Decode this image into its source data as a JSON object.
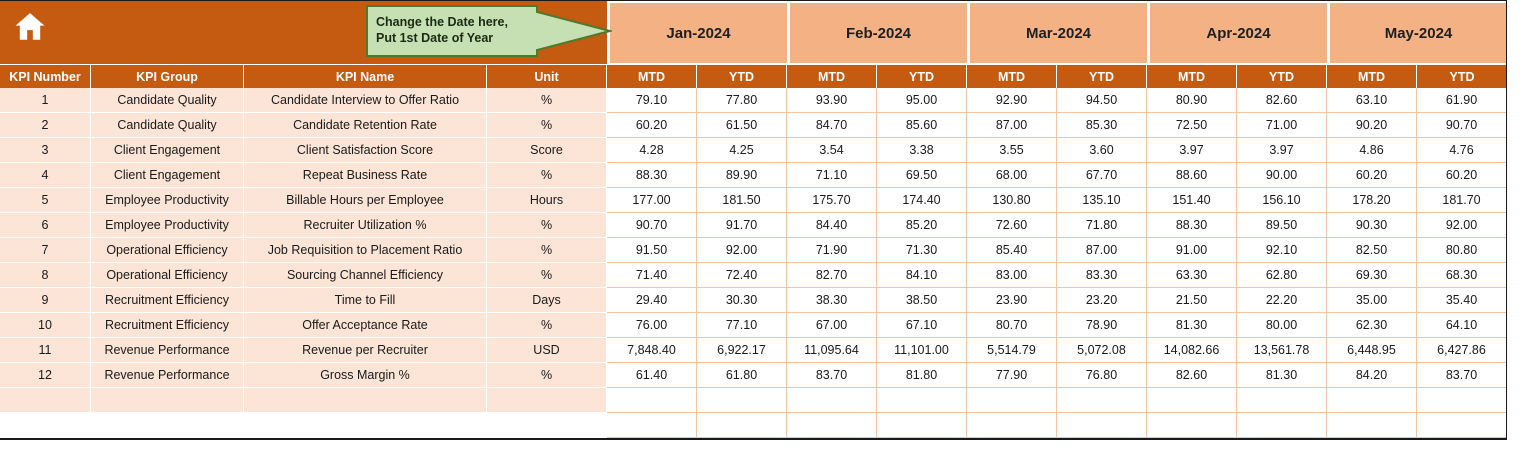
{
  "callout": {
    "line1": "Change the Date here,",
    "line2": "Put 1st Date of Year"
  },
  "months": [
    "Jan-2024",
    "Feb-2024",
    "Mar-2024",
    "Apr-2024",
    "May-2024"
  ],
  "subheader": {
    "mtd": "MTD",
    "ytd": "YTD"
  },
  "columns": [
    "KPI Number",
    "KPI Group",
    "KPI Name",
    "Unit"
  ],
  "rows": [
    {
      "num": "1",
      "group": "Candidate Quality",
      "name": "Candidate Interview to Offer Ratio",
      "unit": "%",
      "values": [
        "79.10",
        "77.80",
        "93.90",
        "95.00",
        "92.90",
        "94.50",
        "80.90",
        "82.60",
        "63.10",
        "61.90"
      ]
    },
    {
      "num": "2",
      "group": "Candidate Quality",
      "name": "Candidate Retention Rate",
      "unit": "%",
      "values": [
        "60.20",
        "61.50",
        "84.70",
        "85.60",
        "87.00",
        "85.30",
        "72.50",
        "71.00",
        "90.20",
        "90.70"
      ]
    },
    {
      "num": "3",
      "group": "Client Engagement",
      "name": "Client Satisfaction Score",
      "unit": "Score",
      "values": [
        "4.28",
        "4.25",
        "3.54",
        "3.38",
        "3.55",
        "3.60",
        "3.97",
        "3.97",
        "4.86",
        "4.76"
      ]
    },
    {
      "num": "4",
      "group": "Client Engagement",
      "name": "Repeat Business Rate",
      "unit": "%",
      "values": [
        "88.30",
        "89.90",
        "71.10",
        "69.50",
        "68.00",
        "67.70",
        "88.60",
        "90.00",
        "60.20",
        "60.20"
      ]
    },
    {
      "num": "5",
      "group": "Employee Productivity",
      "name": "Billable Hours per Employee",
      "unit": "Hours",
      "values": [
        "177.00",
        "181.50",
        "175.70",
        "174.40",
        "130.80",
        "135.10",
        "151.40",
        "156.10",
        "178.20",
        "181.70"
      ]
    },
    {
      "num": "6",
      "group": "Employee Productivity",
      "name": "Recruiter Utilization %",
      "unit": "%",
      "values": [
        "90.70",
        "91.70",
        "84.40",
        "85.20",
        "72.60",
        "71.80",
        "88.30",
        "89.50",
        "90.30",
        "92.00"
      ]
    },
    {
      "num": "7",
      "group": "Operational Efficiency",
      "name": "Job Requisition to Placement Ratio",
      "unit": "%",
      "values": [
        "91.50",
        "92.00",
        "71.90",
        "71.30",
        "85.40",
        "87.00",
        "91.00",
        "92.10",
        "82.50",
        "80.80"
      ]
    },
    {
      "num": "8",
      "group": "Operational Efficiency",
      "name": "Sourcing Channel Efficiency",
      "unit": "%",
      "values": [
        "71.40",
        "72.40",
        "82.70",
        "84.10",
        "83.00",
        "83.30",
        "63.30",
        "62.80",
        "69.30",
        "68.30"
      ]
    },
    {
      "num": "9",
      "group": "Recruitment Efficiency",
      "name": "Time to Fill",
      "unit": "Days",
      "values": [
        "29.40",
        "30.30",
        "38.30",
        "38.50",
        "23.90",
        "23.20",
        "21.50",
        "22.20",
        "35.00",
        "35.40"
      ]
    },
    {
      "num": "10",
      "group": "Recruitment Efficiency",
      "name": "Offer Acceptance Rate",
      "unit": "%",
      "values": [
        "76.00",
        "77.10",
        "67.00",
        "67.10",
        "80.70",
        "78.90",
        "81.30",
        "80.00",
        "62.30",
        "64.10"
      ]
    },
    {
      "num": "11",
      "group": "Revenue Performance",
      "name": "Revenue per Recruiter",
      "unit": "USD",
      "values": [
        "7,848.40",
        "6,922.17",
        "11,095.64",
        "11,101.00",
        "5,514.79",
        "5,072.08",
        "14,082.66",
        "13,561.78",
        "6,448.95",
        "6,427.86"
      ]
    },
    {
      "num": "12",
      "group": "Revenue Performance",
      "name": "Gross Margin %",
      "unit": "%",
      "values": [
        "61.40",
        "61.80",
        "83.70",
        "81.80",
        "77.90",
        "76.80",
        "82.60",
        "81.30",
        "84.20",
        "83.70"
      ]
    }
  ],
  "icons": {
    "home": "home-icon"
  },
  "colors": {
    "header_dark": "#C55A11",
    "month_band": "#F4B183",
    "row_band": "#FCE4D6",
    "grid_line": "#F1C3A1",
    "callout_fill": "#C6E0B4",
    "callout_border": "#4E7A2B",
    "frame": "#1a1a1a"
  }
}
